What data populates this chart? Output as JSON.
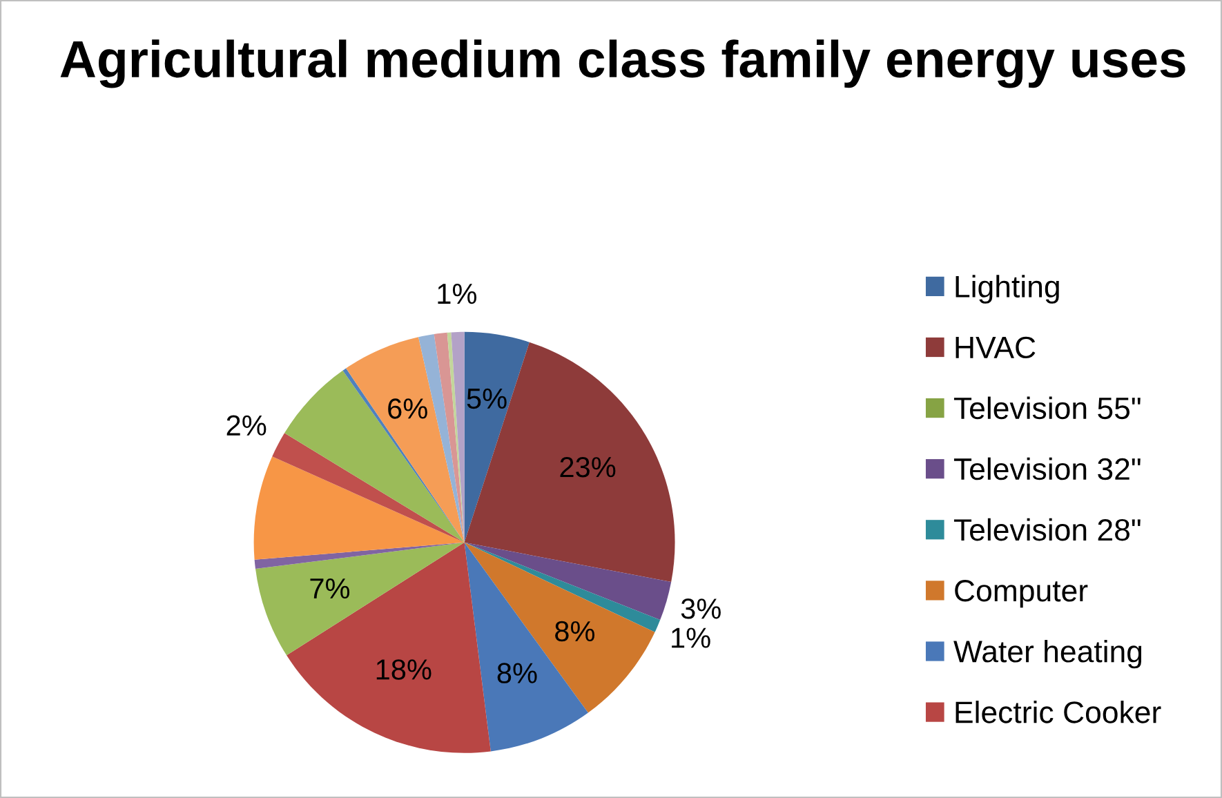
{
  "chart_data": {
    "type": "pie",
    "title": "Agricultural medium class family energy uses",
    "categories": [
      "Lighting",
      "HVAC",
      "Television 55\"",
      "Television 32\"",
      "Television 28\"",
      "Computer",
      "Water heating",
      "Electric Cooker",
      null,
      null,
      null,
      null,
      null,
      null,
      null,
      null,
      null,
      null,
      null
    ],
    "values": [
      5,
      23,
      0,
      3,
      1,
      8,
      8,
      18,
      7,
      0.7,
      8,
      2,
      6.5,
      0.3,
      6,
      1.2,
      1,
      0.3,
      1
    ],
    "value_labels": [
      "5%",
      "23%",
      null,
      "3%",
      "1%",
      "8%",
      "8%",
      "18%",
      "7%",
      null,
      null,
      "2%",
      null,
      null,
      "6%",
      null,
      null,
      null,
      "1%"
    ],
    "colors": [
      "#3f6aa0",
      "#8e3b3a",
      "#86a344",
      "#6a4e8a",
      "#2e8b9a",
      "#d0782c",
      "#4a78b8",
      "#b84644",
      "#9bbb59",
      "#8064a2",
      "#f79646",
      "#c0504d",
      "#9bbb59",
      "#4f81bd",
      "#f59d56",
      "#95b3d7",
      "#d99694",
      "#c3d69b",
      "#b3a2c7"
    ],
    "legend": "right"
  }
}
